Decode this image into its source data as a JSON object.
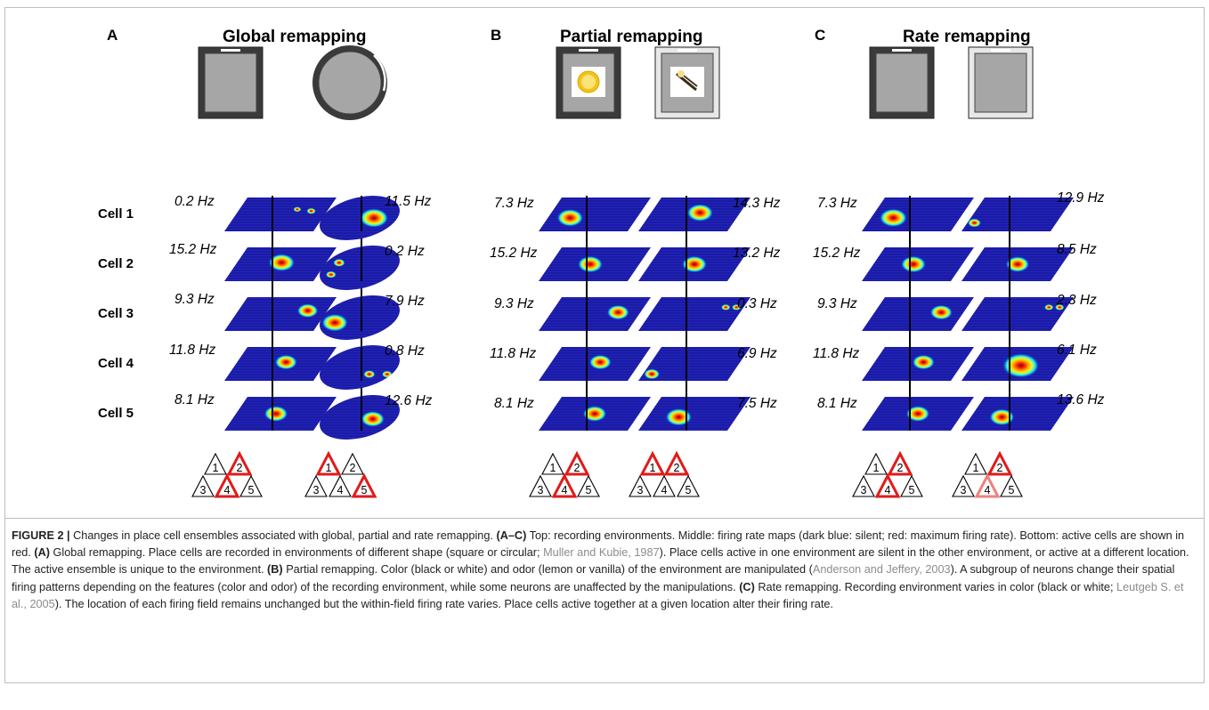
{
  "panels": [
    {
      "letter": "A",
      "title": "Global remapping",
      "left_rates": [
        "0.2 Hz",
        "15.2 Hz",
        "9.3 Hz",
        "11.8 Hz",
        "8.1 Hz"
      ],
      "right_rates": [
        "11.5 Hz",
        "0.2 Hz",
        "7.9 Hz",
        "0.8 Hz",
        "12.6 Hz"
      ]
    },
    {
      "letter": "B",
      "title": "Partial remapping",
      "left_rates": [
        "7.3 Hz",
        "15.2 Hz",
        "9.3 Hz",
        "11.8 Hz",
        "8.1 Hz"
      ],
      "right_rates": [
        "14.3 Hz",
        "13.2 Hz",
        "0.3 Hz",
        "6.9 Hz",
        "7.5 Hz"
      ]
    },
    {
      "letter": "C",
      "title": "Rate remapping",
      "left_rates": [
        "7.3 Hz",
        "15.2 Hz",
        "9.3 Hz",
        "11.8 Hz",
        "8.1 Hz"
      ],
      "right_rates": [
        "12.9 Hz",
        "8.5 Hz",
        "2.3 Hz",
        "6.1 Hz",
        "13.6 Hz"
      ]
    }
  ],
  "cells": [
    "Cell 1",
    "Cell 2",
    "Cell 3",
    "Cell 4",
    "Cell 5"
  ],
  "ensemble_numbers": [
    "1",
    "2",
    "3",
    "4",
    "5"
  ],
  "ensembles": {
    "A_left": {
      "active": [
        2,
        4
      ],
      "faded": []
    },
    "A_right": {
      "active": [
        1,
        5
      ],
      "faded": []
    },
    "B_left": {
      "active": [
        2,
        4
      ],
      "faded": []
    },
    "B_right": {
      "active": [
        1,
        2
      ],
      "faded": []
    },
    "C_left": {
      "active": [
        2,
        4
      ],
      "faded": []
    },
    "C_right": {
      "active": [
        2
      ],
      "faded": [
        4
      ]
    }
  },
  "colors": {
    "active": "#e01b1b",
    "faded": "#f08080",
    "inactive": "#000000",
    "map_bg": "#1a1aa8",
    "env_grey": "#a6a6a6",
    "env_dark": "#333333"
  },
  "caption": {
    "label": "FIGURE 2 |",
    "s1": " Changes in place cell ensembles associated with global, partial and rate remapping. ",
    "s2": "(A–C)",
    "s3": " Top: recording environments. Middle: firing rate maps (dark blue: silent; red: maximum firing rate). Bottom: active cells are shown in red. ",
    "s4": "(A)",
    "s5": " Global remapping. Place cells are recorded in environments of different shape (square or circular; ",
    "ref1": "Muller and Kubie, 1987",
    "s6": "). Place cells active in one environment are silent in the other environment, or active at a different location. The active ensemble is unique to the environment. ",
    "s7": "(B)",
    "s8": " Partial remapping. Color (black or white) and odor (lemon or vanilla) of the environment are manipulated (",
    "ref2": "Anderson and Jeffery, 2003",
    "s9": "). A subgroup of neurons change their spatial firing patterns depending on the features (color and odor) of the recording environment, while some neurons are unaffected by the manipulations. ",
    "s10": "(C)",
    "s11": " Rate remapping. Recording environment varies in color (black or white; ",
    "ref3": "Leutgeb S. et al., 2005",
    "s12": "). The location of each firing field remains unchanged but the within-field firing rate varies. Place cells active together at a given location alter their firing rate."
  }
}
